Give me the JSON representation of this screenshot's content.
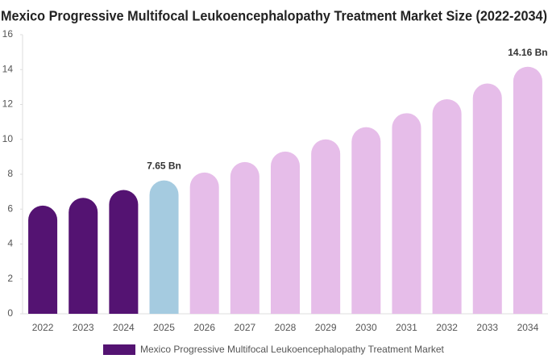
{
  "chart_data": {
    "type": "bar",
    "title": "Mexico Progressive Multifocal Leukoencephalopathy Treatment Market Size (2022-2034)",
    "categories": [
      "2022",
      "2023",
      "2024",
      "2025",
      "2026",
      "2027",
      "2028",
      "2029",
      "2030",
      "2031",
      "2032",
      "2033",
      "2034"
    ],
    "series": [
      {
        "name": "Mexico Progressive Multifocal Leukoencephalopathy Treatment Market",
        "color": "#541372",
        "values": [
          6.2,
          6.65,
          7.1,
          7.65,
          8.1,
          8.7,
          9.3,
          10.0,
          10.7,
          11.5,
          12.3,
          13.2,
          14.16
        ],
        "value_labels": [
          null,
          null,
          null,
          "7.65 Bn",
          null,
          null,
          null,
          null,
          null,
          null,
          null,
          null,
          "14.16 Bn"
        ],
        "colors": [
          "#541372",
          "#541372",
          "#541372",
          "#a5cbe0",
          "#e6bde9",
          "#e6bde9",
          "#e6bde9",
          "#e6bde9",
          "#e6bde9",
          "#e6bde9",
          "#e6bde9",
          "#e6bde9",
          "#e6bde9"
        ]
      }
    ],
    "ylim": [
      0,
      16
    ],
    "yticks": [
      0,
      2,
      4,
      6,
      8,
      10,
      12,
      14,
      16
    ],
    "grid": false,
    "legend": "bottom"
  }
}
